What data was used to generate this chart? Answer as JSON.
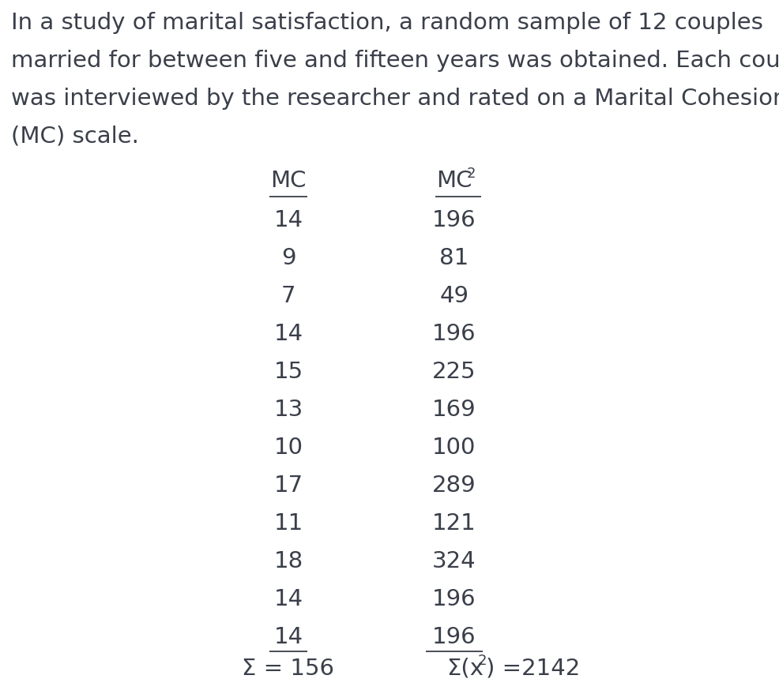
{
  "paragraph_lines": [
    "In a study of marital satisfaction, a random sample of 12 couples",
    "married for between five and fifteen years was obtained. Each couple",
    "was interviewed by the researcher and rated on a Marital Cohesion",
    "(MC) scale."
  ],
  "mc_values": [
    14,
    9,
    7,
    14,
    15,
    13,
    10,
    17,
    11,
    18,
    14,
    14
  ],
  "mc2_values": [
    196,
    81,
    49,
    196,
    225,
    169,
    100,
    289,
    121,
    324,
    196,
    196
  ],
  "sum_mc": 156,
  "sum_mc2": 2142,
  "bg_color": "#ffffff",
  "text_color": "#3a3f4a",
  "font_size_para": 21,
  "font_size_table": 21,
  "fig_width": 9.86,
  "fig_height": 8.6,
  "dpi": 100
}
